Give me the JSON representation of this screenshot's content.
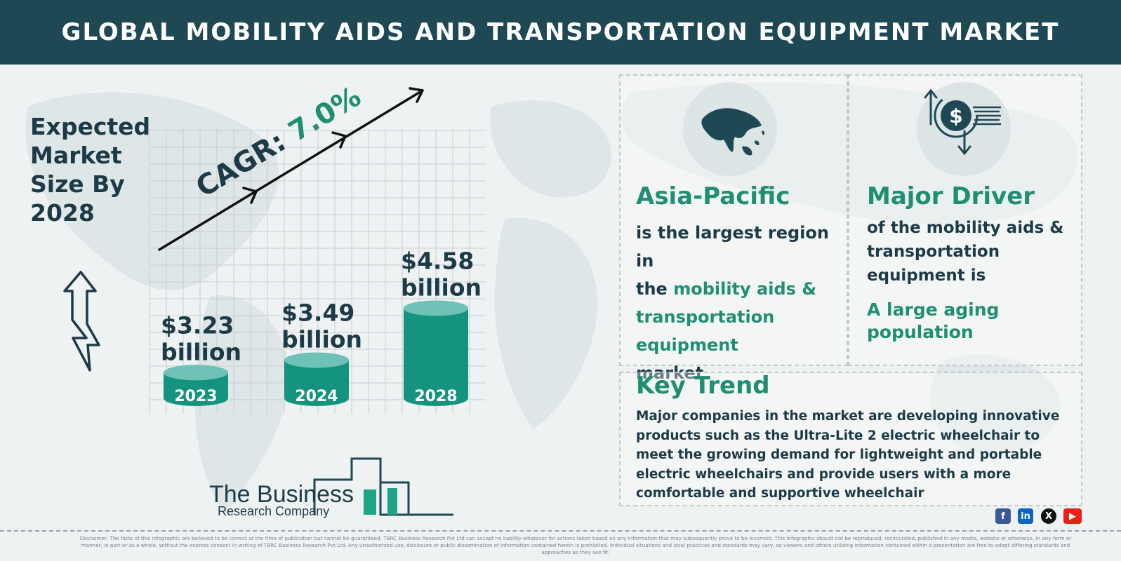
{
  "title": "GLOBAL MOBILITY AIDS AND TRANSPORTATION EQUIPMENT MARKET",
  "expected_label": "Expected Market Size By 2028",
  "colors": {
    "header": "#1e4954",
    "accent": "#1f8e73",
    "bar": "#14937f",
    "bar_top": "#6ec3b6",
    "text": "#1d3b47"
  },
  "chart_data": {
    "type": "bar",
    "categories": [
      "2023",
      "2024",
      "2028"
    ],
    "values": [
      3.23,
      3.49,
      4.58
    ],
    "data_labels": [
      "$3.23",
      "$3.49",
      "$4.58"
    ],
    "unit": "billion",
    "annotation": {
      "label": "CAGR: ",
      "value": "7.0%"
    },
    "grid": true
  },
  "region": {
    "heading": "Asia-Pacific",
    "line1": "is the largest region in",
    "line2_prefix": "the ",
    "line2_emph": "mobility aids &",
    "line3": "transportation",
    "line4": "equipment",
    "line5": "market"
  },
  "driver": {
    "heading": "Major Driver",
    "text": "of the mobility aids & transportation equipment is",
    "emphasis": "A large aging population"
  },
  "trend": {
    "heading": "Key Trend",
    "text": "Major companies in the market are developing innovative products such as the Ultra-Lite 2 electric wheelchair to meet the growing demand for lightweight and portable electric wheelchairs and provide users with a more comfortable and supportive wheelchair"
  },
  "logo": {
    "title": "The Business",
    "subtitle": "Research Company"
  },
  "social": [
    {
      "icon": "facebook-icon",
      "glyph": "f",
      "color": "#3b5998"
    },
    {
      "icon": "linkedin-icon",
      "glyph": "in",
      "color": "#0a66c2"
    },
    {
      "icon": "x-icon",
      "glyph": "X",
      "color": "#111111"
    },
    {
      "icon": "youtube-icon",
      "glyph": "▶",
      "color": "#e62117"
    }
  ],
  "disclaimer": "Disclaimer: The facts of this infographic are believed to be correct at the time of publication but cannot be guaranteed. TBRC Business Research Pvt Ltd can accept no liability whatever for actions taken based on any information that may subsequently prove to be incorrect. This infographic should not be reproduced, recirculated, published in any media, website or otherwise, in any form or manner, in part or as a whole, without the express consent in writing of TBRC Business Research Pvt Ltd. Any unauthorized use, disclosure or public dissemination of information contained herein is prohibited. Individual situations and local practices and standards may vary, so viewers and others utilizing information contained within a presentation are free to adopt differing standards and approaches as they see fit."
}
